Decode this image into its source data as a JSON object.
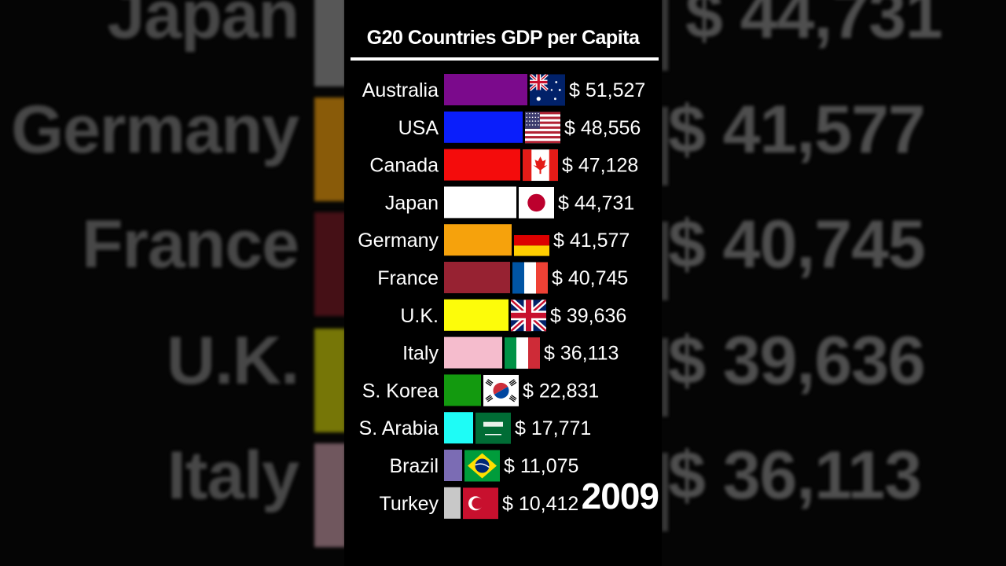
{
  "chart_data": {
    "type": "bar",
    "title": "G20 Countries GDP per Capita",
    "year": "2009",
    "currency_symbol": "$",
    "orientation": "horizontal",
    "bars": [
      {
        "country": "Australia",
        "value": 51527,
        "label": "$ 51,527",
        "color": "#7b0a8c",
        "flag": "australia-flag"
      },
      {
        "country": "USA",
        "value": 48556,
        "label": "$ 48,556",
        "color": "#0a1efb",
        "flag": "usa-flag"
      },
      {
        "country": "Canada",
        "value": 47128,
        "label": "$ 47,128",
        "color": "#f40c0c",
        "flag": "canada-flag"
      },
      {
        "country": "Japan",
        "value": 44731,
        "label": "$ 44,731",
        "color": "#ffffff",
        "flag": "japan-flag"
      },
      {
        "country": "Germany",
        "value": 41577,
        "label": "$ 41,577",
        "color": "#f6a20c",
        "flag": "germany-flag"
      },
      {
        "country": "France",
        "value": 40745,
        "label": "$ 40,745",
        "color": "#972232",
        "flag": "france-flag"
      },
      {
        "country": "U.K.",
        "value": 39636,
        "label": "$ 39,636",
        "color": "#fdfc0a",
        "flag": "uk-flag"
      },
      {
        "country": "Italy",
        "value": 36113,
        "label": "$ 36,113",
        "color": "#f5bccd",
        "flag": "italy-flag"
      },
      {
        "country": "S. Korea",
        "value": 22831,
        "label": "$ 22,831",
        "color": "#139a0f",
        "flag": "south-korea-flag"
      },
      {
        "country": "S. Arabia",
        "value": 17771,
        "label": "$ 17,771",
        "color": "#1efcf6",
        "flag": "saudi-arabia-flag"
      },
      {
        "country": "Brazil",
        "value": 11075,
        "label": "$ 11,075",
        "color": "#7b6cb4",
        "flag": "brazil-flag"
      },
      {
        "country": "Turkey",
        "value": 10412,
        "label": "$ 10,412",
        "color": "#c8c8c8",
        "flag": "turkey-flag"
      }
    ]
  },
  "background": {
    "left": [
      "Japan",
      "Germany",
      "France",
      "U.K.",
      "Italy"
    ],
    "left_colors": [
      "#9a9a9a",
      "#f6a20c",
      "#7a1a24",
      "#d4d40a",
      "#c89aa8"
    ],
    "right": [
      "$ 44,731",
      "$ 41,577",
      "$ 40,745",
      "$ 39,636",
      "$ 36,113"
    ]
  }
}
